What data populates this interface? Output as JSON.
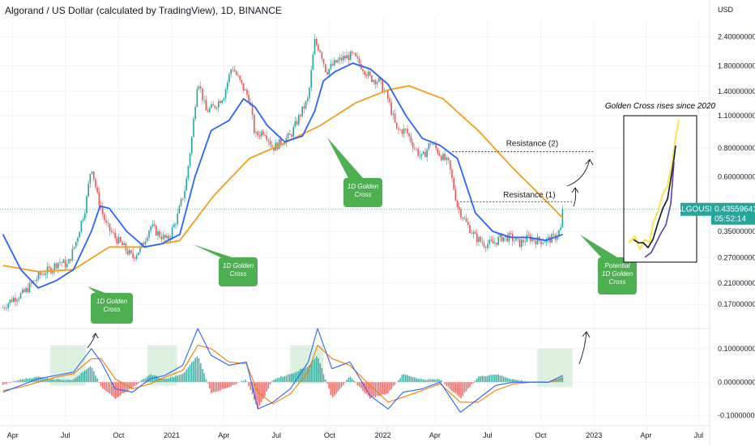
{
  "header": {
    "title": "Algorand / US Dollar (calculated by TradingView), 1D, BINANCE",
    "currency": "USD"
  },
  "price_tag": {
    "symbol": "ALGOUSD",
    "price": "0.43559641",
    "countdown": "05:52:14",
    "value": 0.4356
  },
  "annotations": {
    "resistance_1": "Resistance (1)",
    "resistance_2": "Resistance (2)",
    "golden_cross_box": "Golden Cross rises since 2020",
    "callouts": [
      {
        "line1": "1D Golden",
        "line2": "Cross"
      },
      {
        "line1": "1D Golden",
        "line2": "Cross"
      },
      {
        "line1": "1D Golden",
        "line2": "Cross"
      },
      {
        "line1": "Potential",
        "line2": "1D Golden",
        "line3": "Cross"
      }
    ]
  },
  "chart_data": [
    {
      "type": "line",
      "panel": "price",
      "title": "Algorand / US Dollar (calculated by TradingView), 1D, BINANCE",
      "y_scale": "log",
      "ylim": [
        0.135,
        2.9
      ],
      "yticks": [
        {
          "label": "2.40000000",
          "value": 2.4
        },
        {
          "label": "1.80000000",
          "value": 1.8
        },
        {
          "label": "1.40000000",
          "value": 1.4
        },
        {
          "label": "1.10000000",
          "value": 1.1
        },
        {
          "label": "0.80000000",
          "value": 0.8
        },
        {
          "label": "0.60000000",
          "value": 0.6
        },
        {
          "label": "0.35000000",
          "value": 0.35
        },
        {
          "label": "0.27000000",
          "value": 0.27
        },
        {
          "label": "0.21000000",
          "value": 0.21
        },
        {
          "label": "0.17000000",
          "value": 0.17
        }
      ],
      "xticks": [
        {
          "label": "Apr",
          "t": "2020-04"
        },
        {
          "label": "Jul",
          "t": "2020-07"
        },
        {
          "label": "Oct",
          "t": "2020-10"
        },
        {
          "label": "2021",
          "t": "2021-01"
        },
        {
          "label": "Apr",
          "t": "2021-04"
        },
        {
          "label": "Jul",
          "t": "2021-07"
        },
        {
          "label": "Oct",
          "t": "2021-10"
        },
        {
          "label": "2022",
          "t": "2022-01"
        },
        {
          "label": "Apr",
          "t": "2022-04"
        },
        {
          "label": "Jul",
          "t": "2022-07"
        },
        {
          "label": "Oct",
          "t": "2022-10"
        },
        {
          "label": "2023",
          "t": "2023-01"
        },
        {
          "label": "Apr",
          "t": "2023-04"
        },
        {
          "label": "Jul",
          "t": "2023-07"
        }
      ],
      "series": [
        {
          "role": "price",
          "color": "#26a69a",
          "points": [
            [
              "2020-03-15",
              0.165
            ],
            [
              "2020-04-01",
              0.18
            ],
            [
              "2020-04-20",
              0.19
            ],
            [
              "2020-05-05",
              0.21
            ],
            [
              "2020-05-20",
              0.23
            ],
            [
              "2020-06-05",
              0.24
            ],
            [
              "2020-06-20",
              0.26
            ],
            [
              "2020-07-05",
              0.25
            ],
            [
              "2020-07-20",
              0.32
            ],
            [
              "2020-08-05",
              0.45
            ],
            [
              "2020-08-15",
              0.68
            ],
            [
              "2020-08-25",
              0.5
            ],
            [
              "2020-09-10",
              0.37
            ],
            [
              "2020-09-25",
              0.33
            ],
            [
              "2020-10-10",
              0.3
            ],
            [
              "2020-10-25",
              0.27
            ],
            [
              "2020-11-10",
              0.3
            ],
            [
              "2020-11-25",
              0.37
            ],
            [
              "2020-12-10",
              0.34
            ],
            [
              "2020-12-25",
              0.32
            ],
            [
              "2021-01-10",
              0.4
            ],
            [
              "2021-01-25",
              0.55
            ],
            [
              "2021-02-05",
              0.9
            ],
            [
              "2021-02-15",
              1.6
            ],
            [
              "2021-03-01",
              1.15
            ],
            [
              "2021-03-15",
              1.2
            ],
            [
              "2021-04-01",
              1.35
            ],
            [
              "2021-04-15",
              1.8
            ],
            [
              "2021-05-01",
              1.5
            ],
            [
              "2021-05-15",
              1.3
            ],
            [
              "2021-05-25",
              0.9
            ],
            [
              "2021-06-10",
              0.95
            ],
            [
              "2021-06-25",
              0.8
            ],
            [
              "2021-07-10",
              0.85
            ],
            [
              "2021-07-25",
              0.9
            ],
            [
              "2021-08-10",
              1.1
            ],
            [
              "2021-08-25",
              1.3
            ],
            [
              "2021-09-05",
              2.3
            ],
            [
              "2021-09-15",
              2.1
            ],
            [
              "2021-09-25",
              1.7
            ],
            [
              "2021-10-10",
              1.85
            ],
            [
              "2021-10-25",
              1.95
            ],
            [
              "2021-11-10",
              2.0
            ],
            [
              "2021-11-25",
              1.8
            ],
            [
              "2021-12-10",
              1.6
            ],
            [
              "2021-12-25",
              1.55
            ],
            [
              "2022-01-10",
              1.3
            ],
            [
              "2022-01-25",
              0.95
            ],
            [
              "2022-02-10",
              0.95
            ],
            [
              "2022-02-25",
              0.8
            ],
            [
              "2022-03-10",
              0.72
            ],
            [
              "2022-03-25",
              0.85
            ],
            [
              "2022-04-10",
              0.75
            ],
            [
              "2022-04-25",
              0.68
            ],
            [
              "2022-05-10",
              0.45
            ],
            [
              "2022-05-25",
              0.38
            ],
            [
              "2022-06-10",
              0.33
            ],
            [
              "2022-06-25",
              0.31
            ],
            [
              "2022-07-10",
              0.31
            ],
            [
              "2022-07-25",
              0.33
            ],
            [
              "2022-08-10",
              0.33
            ],
            [
              "2022-08-25",
              0.31
            ],
            [
              "2022-09-10",
              0.33
            ],
            [
              "2022-09-25",
              0.32
            ],
            [
              "2022-10-10",
              0.32
            ],
            [
              "2022-10-25",
              0.33
            ],
            [
              "2022-11-05",
              0.36
            ],
            [
              "2022-11-08",
              0.436
            ]
          ]
        },
        {
          "role": "ma-short",
          "color": "#2962ff",
          "points": [
            [
              "2020-03-15",
              0.34
            ],
            [
              "2020-04-15",
              0.24
            ],
            [
              "2020-05-15",
              0.2
            ],
            [
              "2020-06-15",
              0.215
            ],
            [
              "2020-07-15",
              0.24
            ],
            [
              "2020-08-15",
              0.35
            ],
            [
              "2020-08-30",
              0.45
            ],
            [
              "2020-09-15",
              0.44
            ],
            [
              "2020-10-15",
              0.35
            ],
            [
              "2020-11-15",
              0.3
            ],
            [
              "2020-12-15",
              0.31
            ],
            [
              "2021-01-15",
              0.34
            ],
            [
              "2021-02-10",
              0.6
            ],
            [
              "2021-03-10",
              0.95
            ],
            [
              "2021-04-10",
              1.05
            ],
            [
              "2021-05-05",
              1.3
            ],
            [
              "2021-05-25",
              1.2
            ],
            [
              "2021-06-15",
              1.0
            ],
            [
              "2021-07-15",
              0.85
            ],
            [
              "2021-08-15",
              0.9
            ],
            [
              "2021-09-05",
              1.15
            ],
            [
              "2021-09-20",
              1.55
            ],
            [
              "2021-10-10",
              1.7
            ],
            [
              "2021-11-10",
              1.85
            ],
            [
              "2021-12-10",
              1.75
            ],
            [
              "2022-01-10",
              1.5
            ],
            [
              "2022-02-10",
              1.1
            ],
            [
              "2022-03-10",
              0.88
            ],
            [
              "2022-04-10",
              0.82
            ],
            [
              "2022-05-10",
              0.72
            ],
            [
              "2022-06-10",
              0.42
            ],
            [
              "2022-07-10",
              0.35
            ],
            [
              "2022-08-10",
              0.33
            ],
            [
              "2022-09-10",
              0.33
            ],
            [
              "2022-10-10",
              0.32
            ],
            [
              "2022-11-08",
              0.34
            ]
          ]
        },
        {
          "role": "ma-long",
          "color": "#f59d19",
          "points": [
            [
              "2020-03-15",
              0.25
            ],
            [
              "2020-05-15",
              0.235
            ],
            [
              "2020-07-15",
              0.24
            ],
            [
              "2020-09-15",
              0.3
            ],
            [
              "2020-11-15",
              0.3
            ],
            [
              "2021-01-15",
              0.32
            ],
            [
              "2021-03-15",
              0.5
            ],
            [
              "2021-05-15",
              0.72
            ],
            [
              "2021-07-15",
              0.84
            ],
            [
              "2021-09-15",
              1.0
            ],
            [
              "2021-11-15",
              1.25
            ],
            [
              "2022-01-10",
              1.42
            ],
            [
              "2022-02-15",
              1.48
            ],
            [
              "2022-04-15",
              1.3
            ],
            [
              "2022-06-15",
              0.95
            ],
            [
              "2022-08-15",
              0.65
            ],
            [
              "2022-10-15",
              0.46
            ],
            [
              "2022-11-08",
              0.4
            ]
          ]
        }
      ],
      "levels": [
        {
          "name": "Resistance (1)",
          "value": 0.47
        },
        {
          "name": "Resistance (2)",
          "value": 0.77
        }
      ]
    },
    {
      "type": "bar",
      "panel": "macd",
      "ylim": [
        -0.12,
        0.16
      ],
      "yticks": [
        {
          "label": "0.10000000",
          "value": 0.1
        },
        {
          "label": "0.00000000",
          "value": 0.0
        },
        {
          "label": "-0.10000000",
          "value": -0.1
        }
      ],
      "series": [
        {
          "role": "macd-line",
          "color": "#2962ff",
          "points": [
            [
              "2020-03-15",
              -0.03
            ],
            [
              "2020-04-15",
              -0.01
            ],
            [
              "2020-05-15",
              0.01
            ],
            [
              "2020-06-15",
              0.02
            ],
            [
              "2020-07-15",
              0.03
            ],
            [
              "2020-08-15",
              0.1
            ],
            [
              "2020-09-01",
              0.06
            ],
            [
              "2020-09-25",
              -0.02
            ],
            [
              "2020-10-25",
              -0.03
            ],
            [
              "2020-11-25",
              0.01
            ],
            [
              "2020-12-20",
              0.02
            ],
            [
              "2021-01-20",
              0.05
            ],
            [
              "2021-02-15",
              0.16
            ],
            [
              "2021-03-10",
              0.08
            ],
            [
              "2021-04-10",
              0.05
            ],
            [
              "2021-05-10",
              0.06
            ],
            [
              "2021-05-30",
              -0.08
            ],
            [
              "2021-06-25",
              -0.06
            ],
            [
              "2021-07-25",
              -0.02
            ],
            [
              "2021-08-25",
              0.06
            ],
            [
              "2021-09-10",
              0.16
            ],
            [
              "2021-10-05",
              0.04
            ],
            [
              "2021-11-05",
              0.06
            ],
            [
              "2021-12-10",
              -0.04
            ],
            [
              "2022-01-10",
              -0.08
            ],
            [
              "2022-02-05",
              -0.03
            ],
            [
              "2022-03-10",
              -0.02
            ],
            [
              "2022-04-10",
              0.0
            ],
            [
              "2022-05-15",
              -0.09
            ],
            [
              "2022-06-15",
              -0.05
            ],
            [
              "2022-07-15",
              -0.01
            ],
            [
              "2022-08-15",
              0.0
            ],
            [
              "2022-09-15",
              0.0
            ],
            [
              "2022-10-15",
              0.0
            ],
            [
              "2022-11-08",
              0.02
            ]
          ]
        },
        {
          "role": "signal-line",
          "color": "#f57c00",
          "points": [
            [
              "2020-03-15",
              -0.025
            ],
            [
              "2020-04-15",
              -0.015
            ],
            [
              "2020-05-15",
              0.0
            ],
            [
              "2020-06-15",
              0.015
            ],
            [
              "2020-07-15",
              0.025
            ],
            [
              "2020-08-15",
              0.07
            ],
            [
              "2020-09-01",
              0.07
            ],
            [
              "2020-09-25",
              0.01
            ],
            [
              "2020-10-25",
              -0.02
            ],
            [
              "2020-11-25",
              -0.005
            ],
            [
              "2020-12-20",
              0.015
            ],
            [
              "2021-01-20",
              0.035
            ],
            [
              "2021-02-15",
              0.11
            ],
            [
              "2021-03-10",
              0.1
            ],
            [
              "2021-04-10",
              0.06
            ],
            [
              "2021-05-10",
              0.055
            ],
            [
              "2021-05-30",
              -0.03
            ],
            [
              "2021-06-25",
              -0.065
            ],
            [
              "2021-07-25",
              -0.035
            ],
            [
              "2021-08-25",
              0.03
            ],
            [
              "2021-09-10",
              0.11
            ],
            [
              "2021-10-05",
              0.07
            ],
            [
              "2021-11-05",
              0.05
            ],
            [
              "2021-12-10",
              -0.01
            ],
            [
              "2022-01-10",
              -0.06
            ],
            [
              "2022-02-05",
              -0.045
            ],
            [
              "2022-03-10",
              -0.025
            ],
            [
              "2022-04-10",
              -0.005
            ],
            [
              "2022-05-15",
              -0.06
            ],
            [
              "2022-06-15",
              -0.06
            ],
            [
              "2022-07-15",
              -0.025
            ],
            [
              "2022-08-15",
              -0.005
            ],
            [
              "2022-09-15",
              0.0
            ],
            [
              "2022-10-15",
              0.0
            ],
            [
              "2022-11-08",
              0.01
            ]
          ]
        }
      ]
    }
  ]
}
